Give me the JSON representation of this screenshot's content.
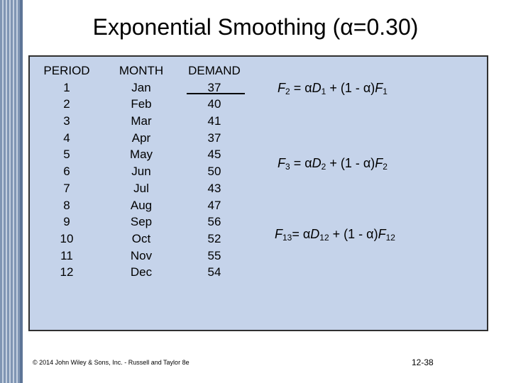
{
  "title": "Exponential Smoothing (α=0.30)",
  "table": {
    "headers": [
      "PERIOD",
      "MONTH",
      "DEMAND"
    ],
    "periods": [
      "1",
      "2",
      "3",
      "4",
      "5",
      "6",
      "7",
      "8",
      "9",
      "10",
      "11",
      "12"
    ],
    "months": [
      "Jan",
      "Feb",
      "Mar",
      "Apr",
      "May",
      "Jun",
      "Jul",
      "Aug",
      "Sep",
      "Oct",
      "Nov",
      "Dec"
    ],
    "demand": [
      "37",
      "40",
      "41",
      "37",
      "45",
      "50",
      "43",
      "47",
      "56",
      "52",
      "55",
      "54"
    ]
  },
  "formulas": [
    {
      "lhs_var": "F",
      "lhs_sub": "2",
      "eq": "= α",
      "d_var": "D",
      "d_sub": "1",
      "mid": "+ (1 - α)",
      "f_var": "F",
      "f_sub": "1"
    },
    {
      "lhs_var": "F",
      "lhs_sub": "3",
      "eq": "= α",
      "d_var": "D",
      "d_sub": "2",
      "mid": "+ (1 - α)",
      "f_var": "F",
      "f_sub": "2"
    },
    {
      "lhs_var": "F",
      "lhs_sub": "13",
      "eq": "= α",
      "d_var": "D",
      "d_sub": "12",
      "mid": "+ (1 - α)",
      "f_var": "F",
      "f_sub": "12"
    }
  ],
  "footer": "© 2014 John Wiley & Sons, Inc. - Russell and Taylor 8e",
  "page_number": "12-38"
}
